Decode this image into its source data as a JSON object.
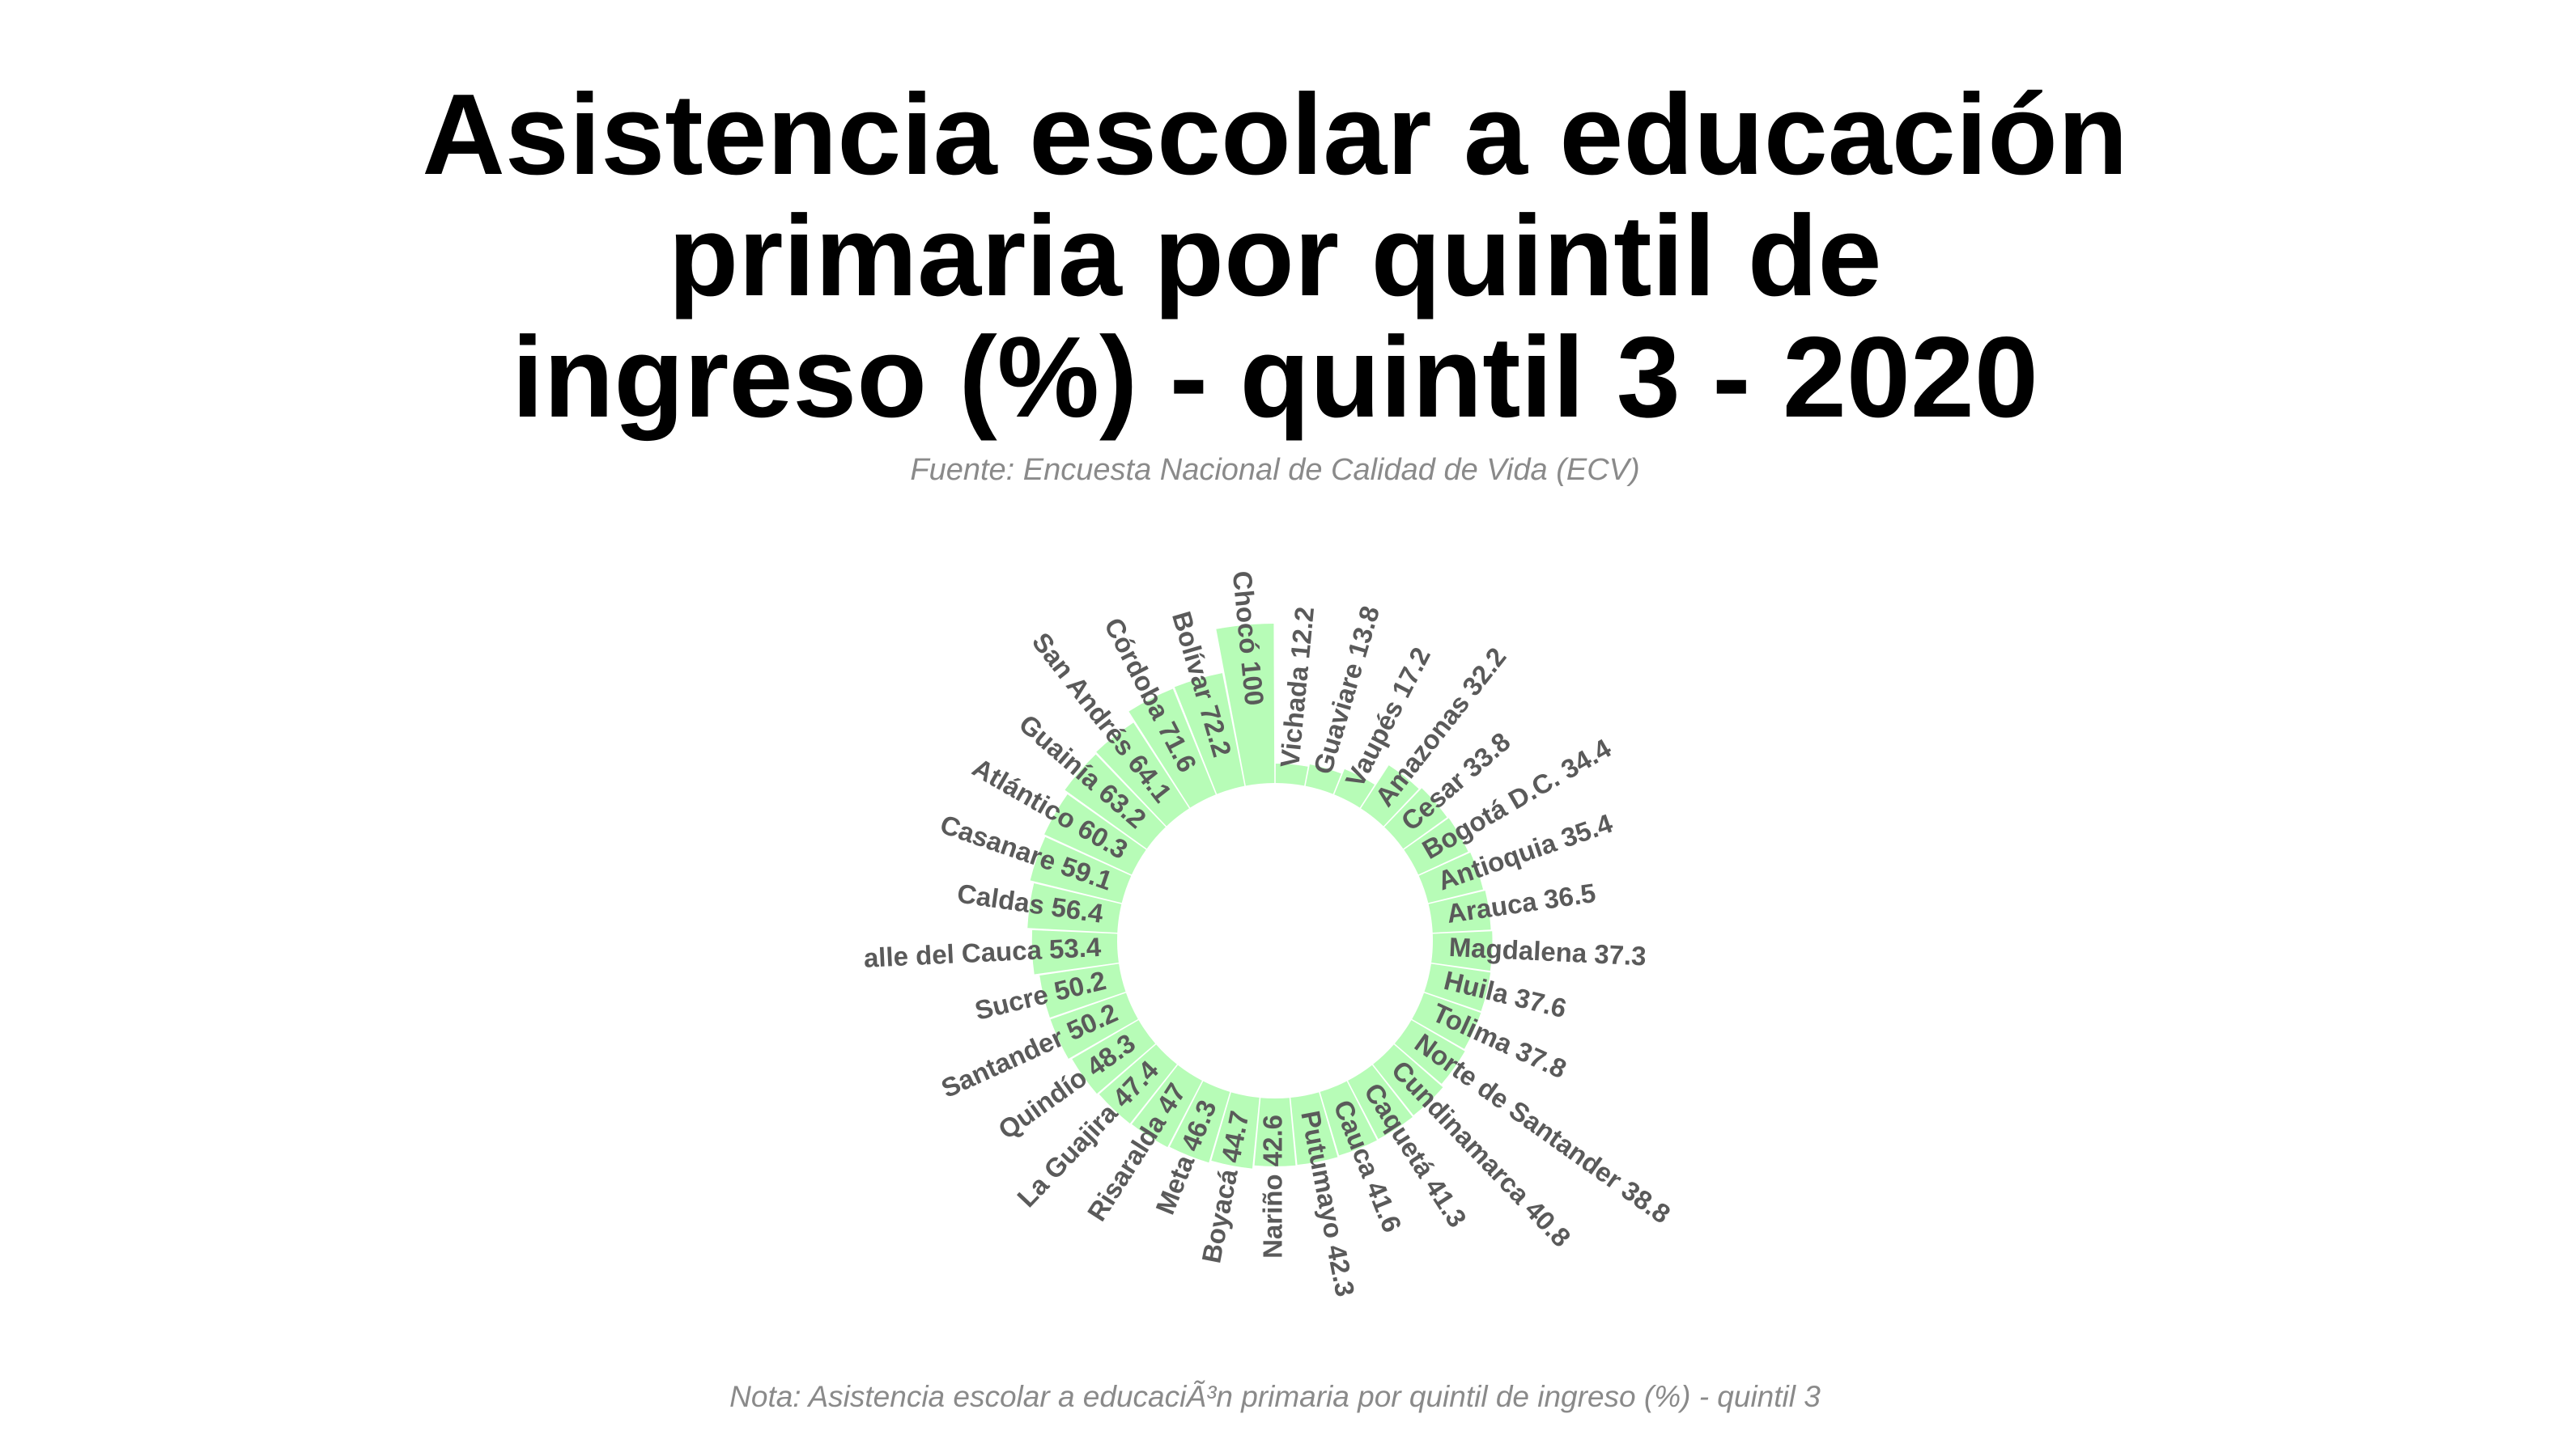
{
  "title_lines": [
    "Asistencia escolar a educación",
    "primaria por quintil de",
    "ingreso (%) - quintil 3 - 2020"
  ],
  "subtitle": "Fuente: Encuesta Nacional de Calidad de Vida (ECV)",
  "note": "Nota: Asistencia escolar a educaciÃ³n primaria por quintil de ingreso (%) - quintil 3",
  "bar_color": "#b7fcb7",
  "chart_data": {
    "type": "bar",
    "coordinate_system": "polar",
    "title": "Asistencia escolar a educación primaria por quintil de ingreso (%) - quintil 3 - 2020",
    "categories": [
      "Vichada",
      "Guaviare",
      "Vaupés",
      "Amazonas",
      "Cesar",
      "Bogotá D.C.",
      "Antioquia",
      "Arauca",
      "Magdalena",
      "Huila",
      "Tolima",
      "Norte de Santander",
      "Cundinamarca",
      "Caquetá",
      "Cauca",
      "Putumayo",
      "Nariño",
      "Boyacá",
      "Meta",
      "Risaralda",
      "La Guajira",
      "Quindío",
      "Santander",
      "Sucre",
      "Valle del Cauca",
      "Caldas",
      "Casanare",
      "Atlántico",
      "Guainía",
      "San Andrés",
      "Córdoba",
      "Bolívar",
      "Chocó"
    ],
    "values": [
      12.2,
      13.8,
      17.2,
      32.2,
      33.8,
      34.4,
      35.4,
      36.5,
      37.3,
      37.6,
      37.8,
      38.8,
      40.8,
      41.3,
      41.6,
      42.3,
      42.6,
      44.7,
      46.3,
      47,
      47.4,
      48.3,
      50.2,
      50.2,
      53.4,
      56.4,
      59.1,
      60.3,
      63.2,
      64.1,
      71.6,
      72.2,
      100
    ],
    "labels": [
      "Vichada 12.2",
      "Guaviare 13.8",
      "Vaupés 17.2",
      "Amazonas 32.2",
      "Cesar 33.8",
      "Bogotá D.C. 34.4",
      "Antioquia 35.4",
      "Arauca 36.5",
      "Magdalena 37.3",
      "Huila 37.6",
      "Tolima 37.8",
      "Norte de Santander 38.8",
      "Cundinamarca 40.8",
      "Caquetá 41.3",
      "Cauca 41.6",
      "Putumayo 42.3",
      "Nariño 42.6",
      "Boyacá 44.7",
      "Meta 46.3",
      "Risaralda 47",
      "La Guajira 47.4",
      "Quindío 48.3",
      "Santander 50.2",
      "Sucre 50.2",
      "alle del Cauca 53.4",
      "Caldas 56.4",
      "Casanare 59.1",
      "Atlántico 60.3",
      "Guainía 63.2",
      "San Andrés 64.1",
      "Córdoba 71.6",
      "Bolívar 72.2",
      "Chocó 100"
    ],
    "ylim": [
      0,
      100
    ],
    "grid": false,
    "legend": "none"
  }
}
